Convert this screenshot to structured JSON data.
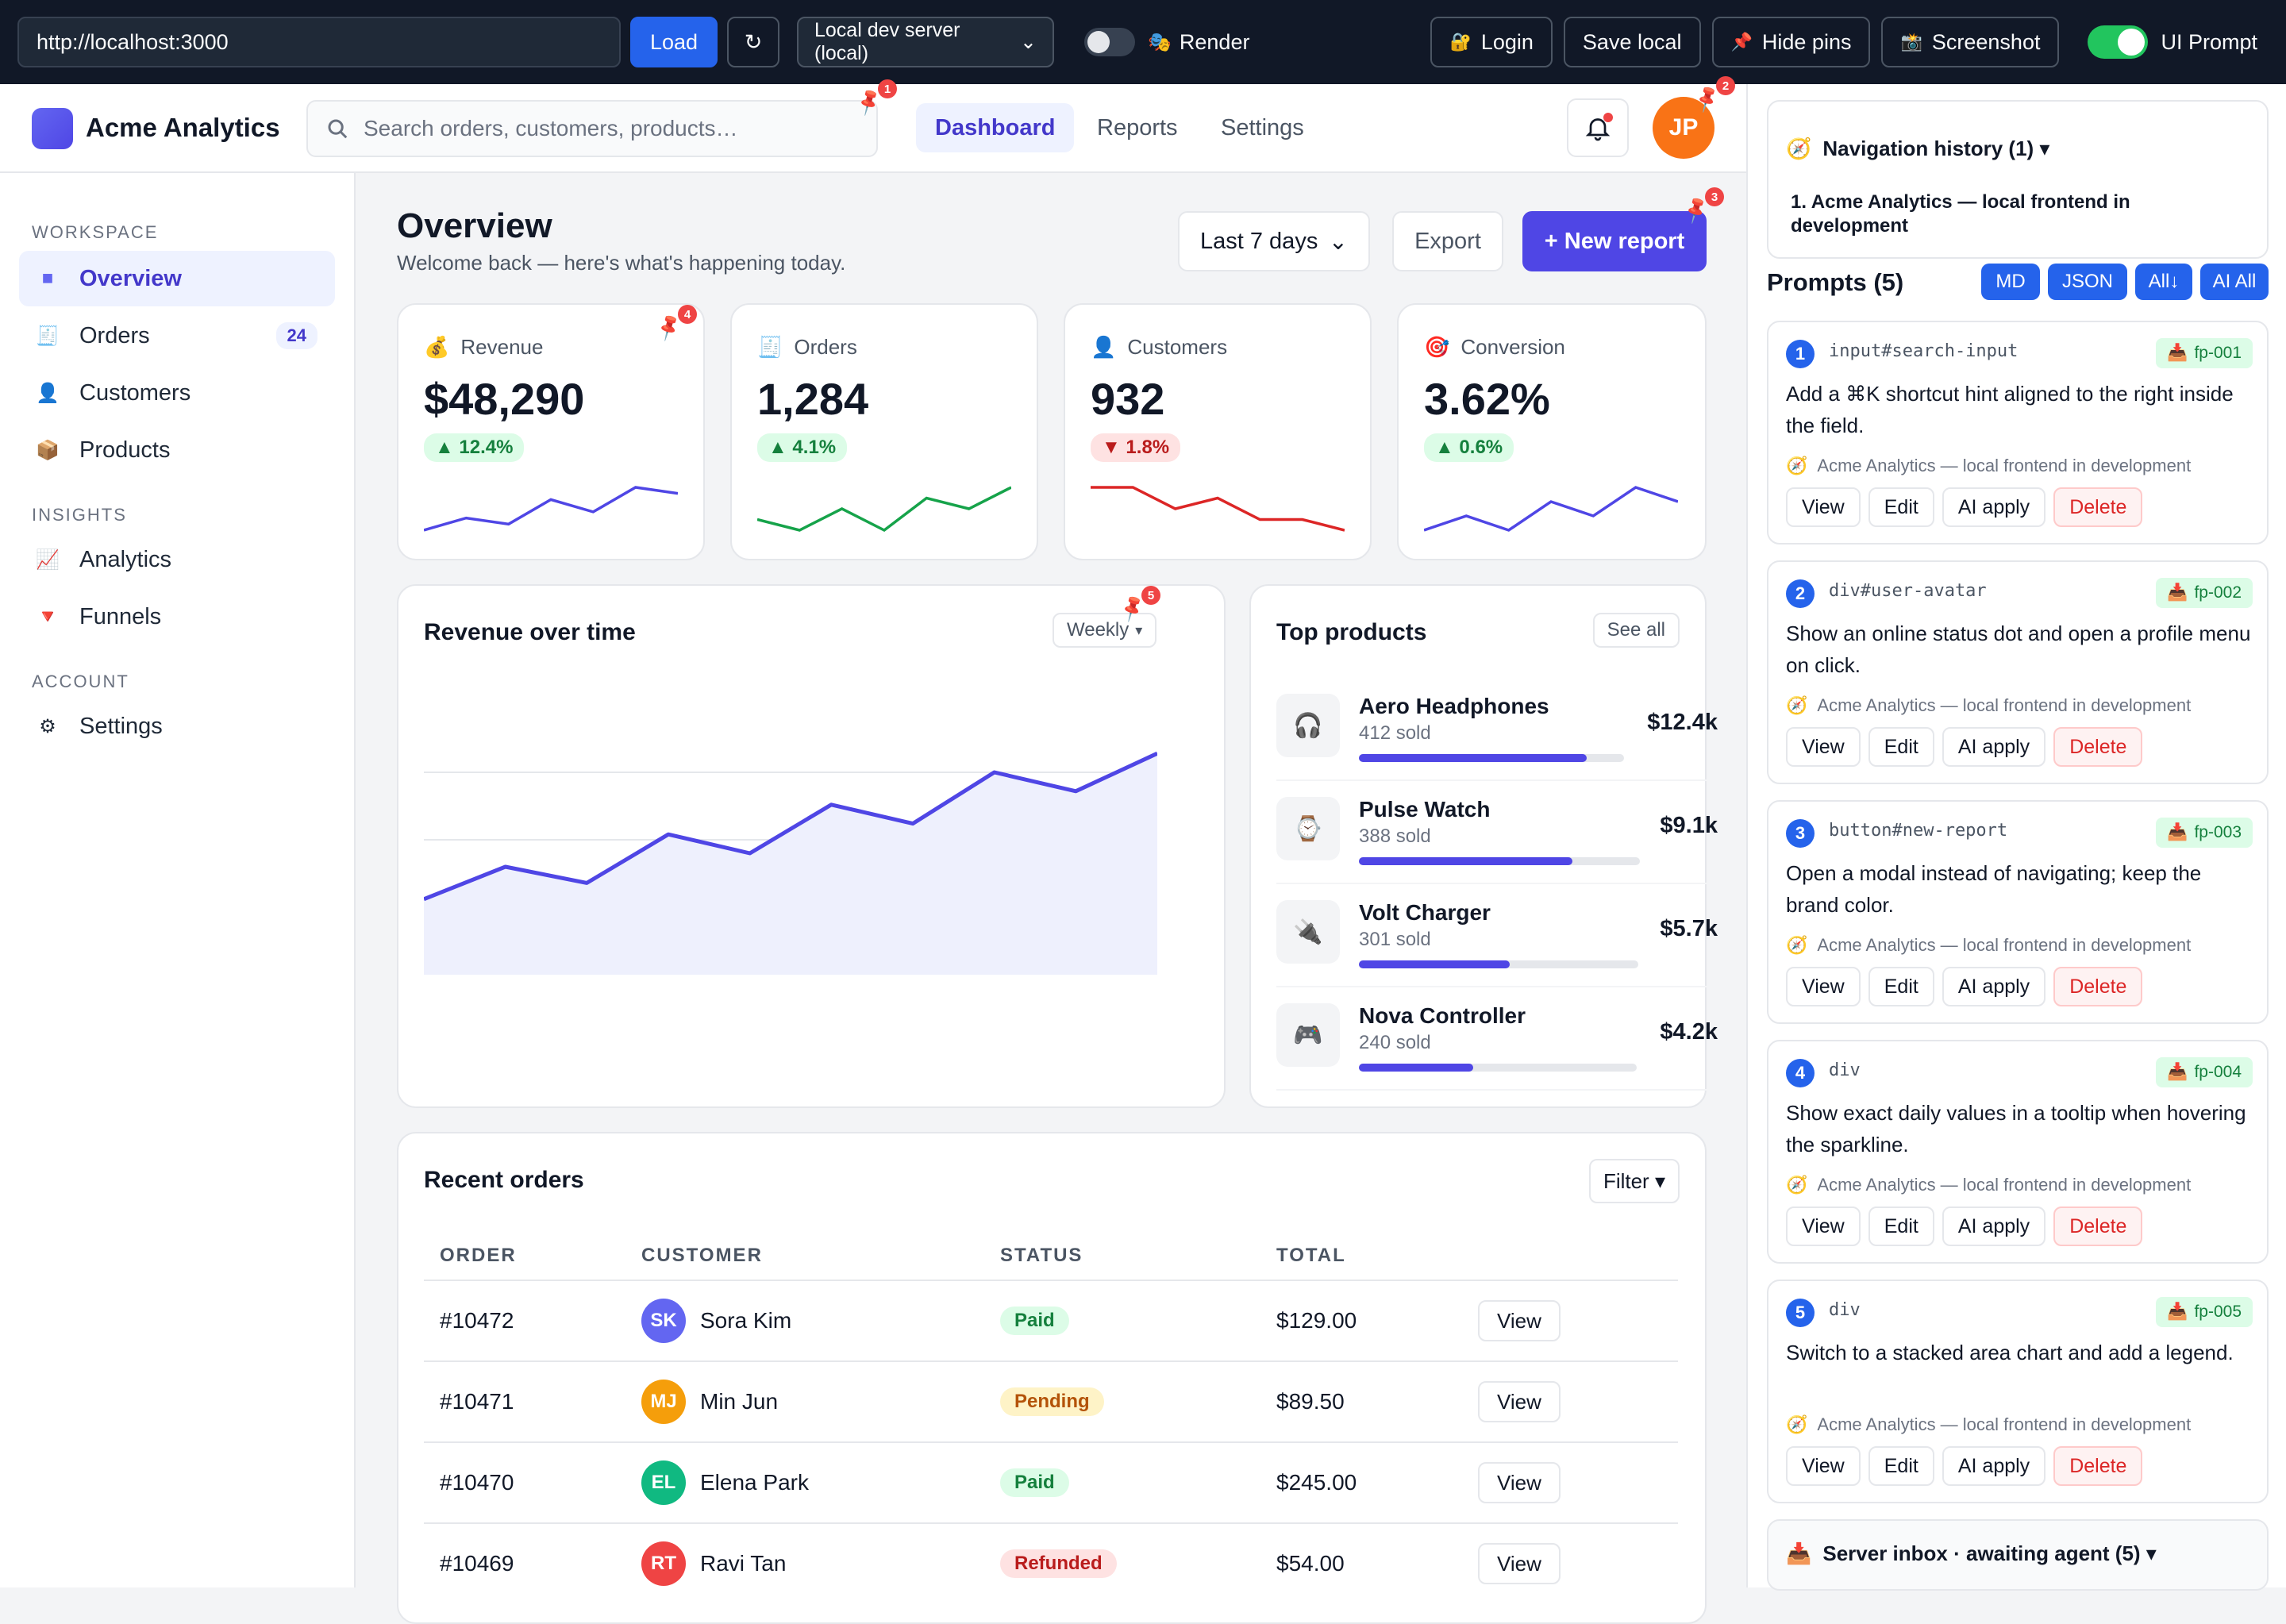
{
  "toolbar": {
    "url": "http://localhost:3000",
    "load_label": "Load",
    "refresh_icon": "↻",
    "server_select": "Local dev server (local)",
    "render_label": "Render",
    "login_label": "Login",
    "save_local_label": "Save local",
    "hide_pins_label": "Hide pins",
    "screenshot_label": "Screenshot",
    "ui_prompt_label": "UI Prompt"
  },
  "header": {
    "brand": "Acme Analytics",
    "search_placeholder": "Search orders, customers, products…",
    "tabs": [
      "Dashboard",
      "Reports",
      "Settings"
    ],
    "avatar_initials": "JP"
  },
  "sidebar": {
    "sections": [
      "WORKSPACE",
      "INSIGHTS",
      "ACCOUNT"
    ],
    "items": [
      {
        "label": "Overview",
        "icon": "■"
      },
      {
        "label": "Orders",
        "icon": "🧾",
        "badge": "24"
      },
      {
        "label": "Customers",
        "icon": "👤"
      },
      {
        "label": "Products",
        "icon": "📦"
      },
      {
        "label": "Analytics",
        "icon": "📈"
      },
      {
        "label": "Funnels",
        "icon": "🔻"
      },
      {
        "label": "Settings",
        "icon": "⚙"
      }
    ]
  },
  "overview": {
    "title": "Overview",
    "subtitle": "Welcome back — here's what's happening today.",
    "range": "Last 7 days",
    "export_label": "Export",
    "new_report_label": "+ New report"
  },
  "kpis": [
    {
      "label": "Revenue",
      "icon": "💰",
      "value": "$48,290",
      "delta": "▲ 12.4%",
      "trend": [
        3,
        5,
        4,
        8,
        6,
        10,
        9
      ],
      "color": "#4f46e5"
    },
    {
      "label": "Orders",
      "icon": "🧾",
      "value": "1,284",
      "delta": "▲ 4.1%",
      "trend": [
        5,
        4,
        6,
        4,
        7,
        6,
        8
      ],
      "color": "#16a34a"
    },
    {
      "label": "Customers",
      "icon": "👤",
      "value": "932",
      "delta": "▼ 1.8%",
      "trend": [
        8,
        8,
        6,
        7,
        5,
        5,
        4
      ],
      "color": "#dc2626"
    },
    {
      "label": "Conversion",
      "icon": "🎯",
      "value": "3.62%",
      "delta": "▲ 0.6%",
      "trend": [
        3,
        4,
        3,
        5,
        4,
        6,
        5
      ],
      "color": "#4f46e5"
    }
  ],
  "chart_data": {
    "type": "area",
    "title": "Revenue over time",
    "period_select": "Weekly",
    "x": [
      1,
      2,
      3,
      4,
      5,
      6,
      7,
      8,
      9,
      10
    ],
    "series": [
      {
        "values": [
          28,
          40,
          34,
          52,
          45,
          63,
          56,
          75,
          68,
          82
        ]
      }
    ],
    "ylim": [
      0,
      100
    ],
    "grid": true,
    "color": "#4f46e5"
  },
  "top_products": {
    "title": "Top products",
    "see_all_label": "See all",
    "items": [
      {
        "name": "Aero Headphones",
        "sold": "412 sold",
        "value": "$12.4k",
        "share": 0.86,
        "icon": "🎧"
      },
      {
        "name": "Pulse Watch",
        "sold": "388 sold",
        "value": "$9.1k",
        "share": 0.76,
        "icon": "⌚"
      },
      {
        "name": "Volt Charger",
        "sold": "301 sold",
        "value": "$5.7k",
        "share": 0.54,
        "icon": "🔌"
      },
      {
        "name": "Nova Controller",
        "sold": "240 sold",
        "value": "$4.2k",
        "share": 0.41,
        "icon": "🎮"
      }
    ]
  },
  "orders": {
    "title": "Recent orders",
    "filter_label": "Filter ▾",
    "columns": [
      "ORDER",
      "CUSTOMER",
      "STATUS",
      "TOTAL"
    ],
    "view_label": "View",
    "rows": [
      {
        "id": "#10472",
        "initials": "SK",
        "customer": "Sora Kim",
        "status": "Paid",
        "status_kind": "paid",
        "total": "$129.00",
        "color": "#6366f1"
      },
      {
        "id": "#10471",
        "initials": "MJ",
        "customer": "Min Jun",
        "status": "Pending",
        "status_kind": "pending",
        "total": "$89.50",
        "color": "#f59e0b"
      },
      {
        "id": "#10470",
        "initials": "EL",
        "customer": "Elena Park",
        "status": "Paid",
        "status_kind": "paid",
        "total": "$245.00",
        "color": "#10b981"
      },
      {
        "id": "#10469",
        "initials": "RT",
        "customer": "Ravi Tan",
        "status": "Refunded",
        "status_kind": "refunded",
        "total": "$54.00",
        "color": "#ef4444"
      }
    ]
  },
  "pins": [
    "1",
    "2",
    "3",
    "4",
    "5"
  ],
  "panel": {
    "nav_history_title": "Navigation history (1) ▾",
    "nav_history_item": "1. Acme Analytics — local frontend in development",
    "prompts_title": "Prompts (5)",
    "buttons": [
      "MD",
      "JSON",
      "All↓",
      "AI All"
    ],
    "action_labels": [
      "View",
      "Edit",
      "AI apply",
      "Delete"
    ],
    "prompts": [
      {
        "num": "1",
        "selector": "input#search-input",
        "tag": "fp-001",
        "text": "Add a ⌘K shortcut hint aligned to the right inside the field.",
        "context": "Acme Analytics — local frontend in development"
      },
      {
        "num": "2",
        "selector": "div#user-avatar",
        "tag": "fp-002",
        "text": "Show an online status dot and open a profile menu on click.",
        "context": "Acme Analytics — local frontend in development"
      },
      {
        "num": "3",
        "selector": "button#new-report",
        "tag": "fp-003",
        "text": "Open a modal instead of navigating; keep the brand color.",
        "context": "Acme Analytics — local frontend in development"
      },
      {
        "num": "4",
        "selector": "div",
        "tag": "fp-004",
        "text": "Show exact daily values in a tooltip when hovering the sparkline.",
        "context": "Acme Analytics — local frontend in development"
      },
      {
        "num": "5",
        "selector": "div",
        "tag": "fp-005",
        "text": "Switch to a stacked area chart and add a legend.",
        "context": "Acme Analytics — local frontend in development"
      }
    ],
    "inbox_title": "Server inbox · awaiting agent (5) ▾"
  }
}
